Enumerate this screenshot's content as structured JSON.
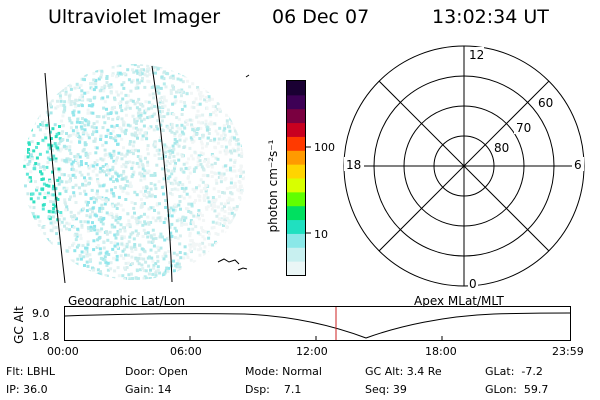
{
  "header": {
    "instrument": "Ultraviolet Imager",
    "date": "06 Dec 07",
    "time": "13:02:34 UT"
  },
  "colorbar": {
    "unit_label": "photon cm⁻²s⁻¹",
    "ticks": [
      "100",
      "10"
    ],
    "colors": [
      "#1a0033",
      "#3d0055",
      "#7a0040",
      "#c80020",
      "#ff3a00",
      "#ff9a00",
      "#ffd400",
      "#d8ff00",
      "#60ff00",
      "#00e060",
      "#20e0c0",
      "#8ae8e8",
      "#c8f0f0",
      "#eaf6f6"
    ]
  },
  "polar_plot": {
    "labels": {
      "top": "12",
      "left": "18",
      "right": "6",
      "bottom": "0"
    },
    "rings": [
      "60",
      "70",
      "80"
    ]
  },
  "timeline": {
    "left_title": "Geographic Lat/Lon",
    "right_title": "Apex MLat/MLT",
    "axis_label": "GC Alt",
    "y_ticks": [
      "9.0",
      "1.8"
    ],
    "x_ticks": [
      "00:00",
      "06:00",
      "12:00",
      "18:00",
      "23:59"
    ],
    "marker_color": "#cc2222"
  },
  "status": {
    "flt": "Flt: LBHL",
    "door": "Door: Open",
    "mode": "Mode: Normal",
    "gc_alt": "GC Alt: 3.4 Re",
    "glat": "GLat:  -7.2",
    "ip": "IP: 36.0",
    "gain": "Gain: 14",
    "dsp": "Dsp:    7.1",
    "seq": "Seq: 39",
    "glon": "GLon:  59.7"
  }
}
